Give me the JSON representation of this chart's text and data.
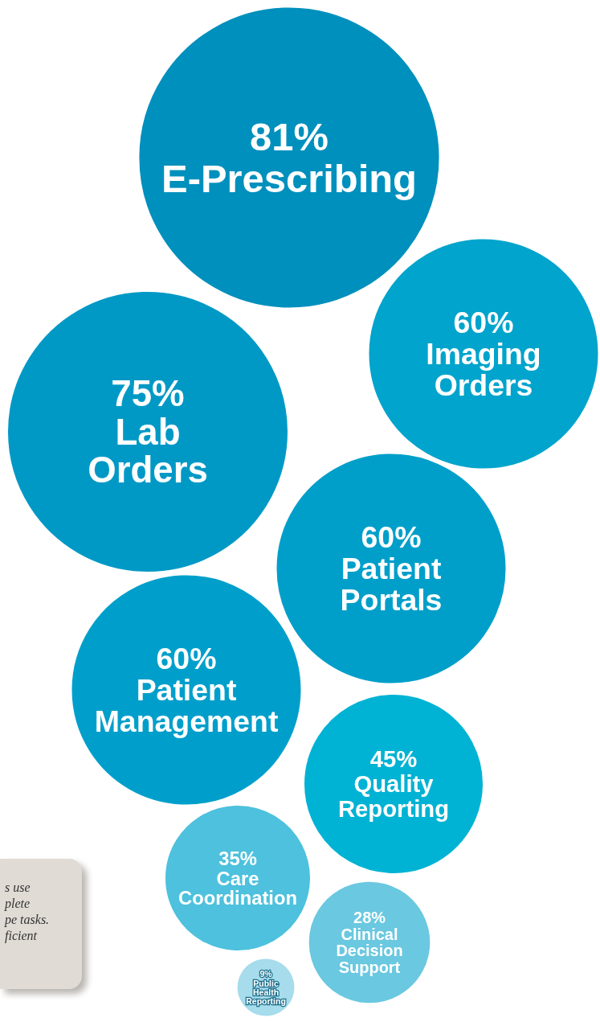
{
  "chart_data": {
    "type": "other",
    "categories": [
      "E-Prescribing",
      "Imaging Orders",
      "Lab Orders",
      "Patient Portals",
      "Patient Management",
      "Quality Reporting",
      "Care Coordination",
      "Clinical Decision Support",
      "Public Health Reporting"
    ],
    "values": [
      81,
      60,
      75,
      60,
      60,
      45,
      35,
      28,
      9
    ],
    "value_labels": [
      "81%",
      "60%",
      "75%",
      "60%",
      "60%",
      "45%",
      "35%",
      "28%",
      "9%"
    ],
    "colors": [
      "#0090bd",
      "#00a4cc",
      "#0099c6",
      "#009fca",
      "#009fcb",
      "#00b3d4",
      "#4dc1dd",
      "#6ac8e0",
      "#a6dcec"
    ],
    "annotations": [
      "s use\nplete\npe tasks.\nficient"
    ]
  }
}
